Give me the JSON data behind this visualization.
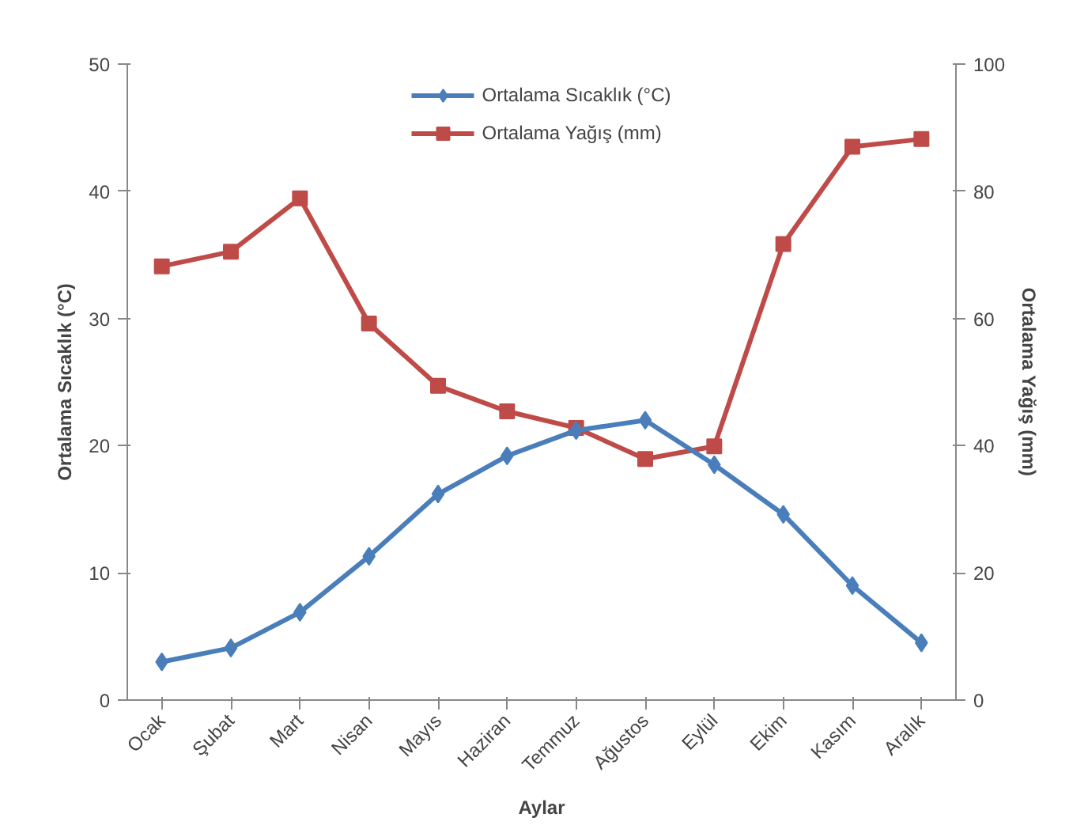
{
  "chart_data": {
    "type": "line",
    "xlabel": "Aylar",
    "ylabel": "Ortalama Sıcaklık (°C)",
    "y2label": "Ortalama Yağış (mm)",
    "categories": [
      "Ocak",
      "Şubat",
      "Mart",
      "Nisan",
      "Mayıs",
      "Haziran",
      "Temmuz",
      "Ağustos",
      "Eylül",
      "Ekim",
      "Kasım",
      "Aralık"
    ],
    "series": [
      {
        "name": "Ortalama Sıcaklık (°C)",
        "color": "#4a7ebb",
        "marker": "diamond",
        "values": [
          3.0,
          4.1,
          6.9,
          11.3,
          16.2,
          19.2,
          21.2,
          22.0,
          18.5,
          14.6,
          9.0,
          4.5
        ]
      },
      {
        "name": "Ortalama Yağış (mm)",
        "color": "#be4b48",
        "marker": "square",
        "axis": "y2",
        "values": [
          68.2,
          70.5,
          78.9,
          59.2,
          49.4,
          45.4,
          42.8,
          37.9,
          39.9,
          71.7,
          87.0,
          88.2
        ]
      }
    ],
    "ylim": [
      0,
      50
    ],
    "yticks": [
      0,
      10,
      20,
      30,
      40,
      50
    ],
    "y2lim": [
      0,
      100
    ],
    "y2ticks": [
      0,
      20,
      40,
      60,
      80,
      100
    ],
    "grid": false,
    "legend": "top",
    "line_style": "solid"
  }
}
